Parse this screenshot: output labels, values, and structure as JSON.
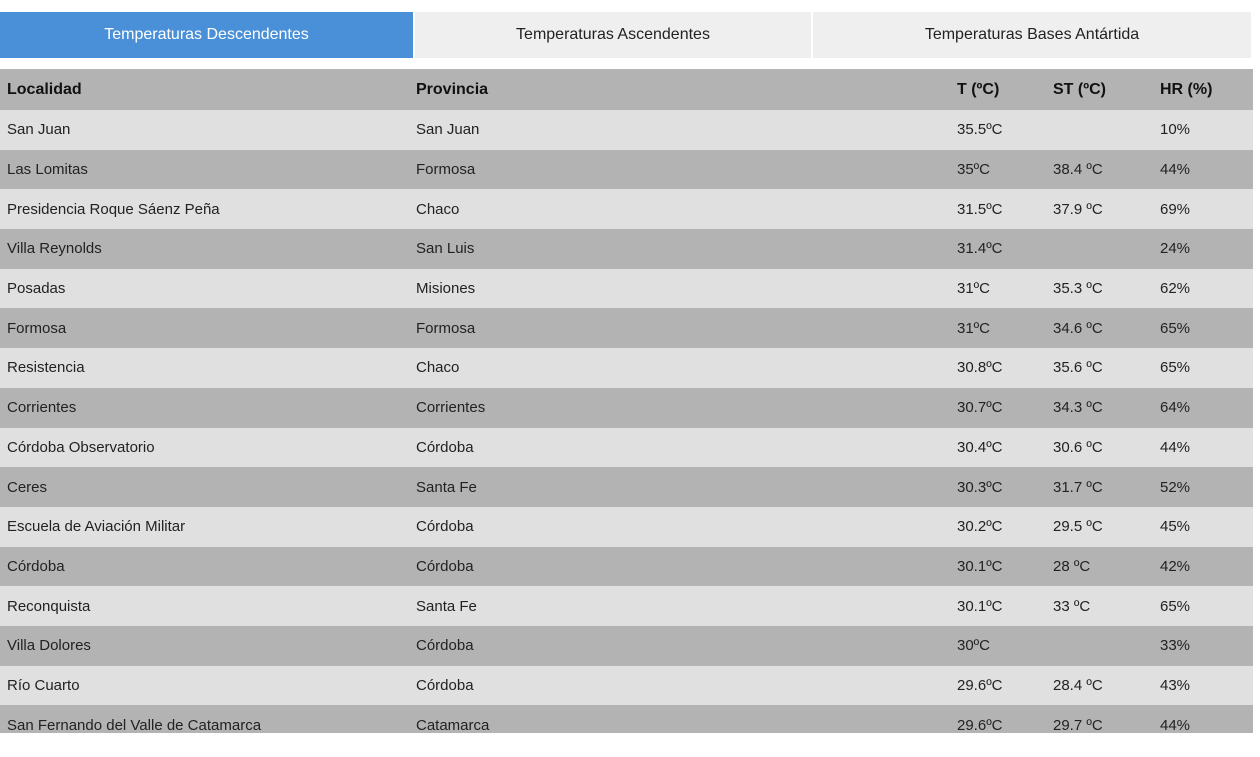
{
  "tabs": [
    "Temperaturas Descendentes",
    "Temperaturas Ascendentes",
    "Temperaturas Bases Antártida"
  ],
  "table": {
    "header": [
      "Localidad",
      "Provincia",
      "T (ºC)",
      "ST (ºC)",
      "HR (%)"
    ],
    "rows": [
      [
        "San Juan",
        "San Juan",
        "35.5ºC",
        null,
        "10%"
      ],
      [
        "Las Lomitas",
        "Formosa",
        "35ºC",
        "38.4 ºC",
        "44%"
      ],
      [
        "Presidencia Roque Sáenz Peña",
        "Chaco",
        "31.5ºC",
        "37.9 ºC",
        "69%"
      ],
      [
        "Villa Reynolds",
        "San Luis",
        "31.4ºC",
        null,
        "24%"
      ],
      [
        "Posadas",
        "Misiones",
        "31ºC",
        "35.3 ºC",
        "62%"
      ],
      [
        "Formosa",
        "Formosa",
        "31ºC",
        "34.6 ºC",
        "65%"
      ],
      [
        "Resistencia",
        "Chaco",
        "30.8ºC",
        "35.6 ºC",
        "65%"
      ],
      [
        "Corrientes",
        "Corrientes",
        "30.7ºC",
        "34.3 ºC",
        "64%"
      ],
      [
        "Córdoba Observatorio",
        "Córdoba",
        "30.4ºC",
        "30.6 ºC",
        "44%"
      ],
      [
        "Ceres",
        "Santa Fe",
        "30.3ºC",
        "31.7 ºC",
        "52%"
      ],
      [
        "Escuela de Aviación Militar",
        "Córdoba",
        "30.2ºC",
        "29.5 ºC",
        "45%"
      ],
      [
        "Córdoba",
        "Córdoba",
        "30.1ºC",
        "28 ºC",
        "42%"
      ],
      [
        "Reconquista",
        "Santa Fe",
        "30.1ºC",
        "33 ºC",
        "65%"
      ],
      [
        "Villa Dolores",
        "Córdoba",
        "30ºC",
        null,
        "33%"
      ],
      [
        "Río Cuarto",
        "Córdoba",
        "29.6ºC",
        "28.4 ºC",
        "43%"
      ],
      [
        "San Fernando del Valle de Catamarca",
        "Catamarca",
        "29.6ºC",
        "29.7 ºC",
        "44%"
      ]
    ]
  }
}
